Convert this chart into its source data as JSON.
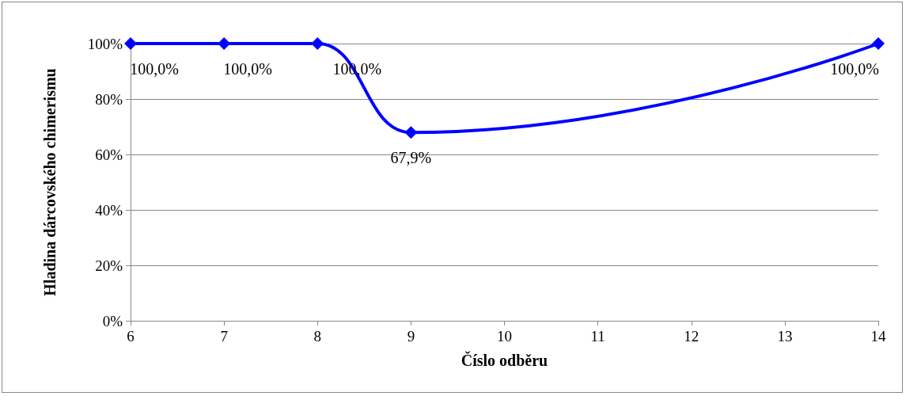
{
  "chart_data": {
    "type": "line",
    "xlabel": "Číslo odběru",
    "ylabel": "Hladina dárcovského chimerismu",
    "x": [
      6,
      7,
      8,
      9,
      14
    ],
    "series": [
      {
        "color": "#0000ff",
        "values": [
          100,
          100,
          100,
          67.9,
          100
        ],
        "value_labels": [
          "100,0%",
          "100,0%",
          "100,0%",
          "67,9%",
          "100,0%"
        ]
      }
    ],
    "xlim": [
      6,
      14
    ],
    "xticks": [
      6,
      7,
      8,
      9,
      10,
      11,
      12,
      13,
      14
    ],
    "ylim": [
      0,
      100
    ],
    "yticks": [
      {
        "value": 0,
        "label": "0%"
      },
      {
        "value": 20,
        "label": "20%"
      },
      {
        "value": 40,
        "label": "40%"
      },
      {
        "value": 60,
        "label": "60%"
      },
      {
        "value": 80,
        "label": "80%"
      },
      {
        "value": 100,
        "label": "100%"
      }
    ],
    "grid": "y",
    "marker": "diamond",
    "line_style": "solid"
  }
}
